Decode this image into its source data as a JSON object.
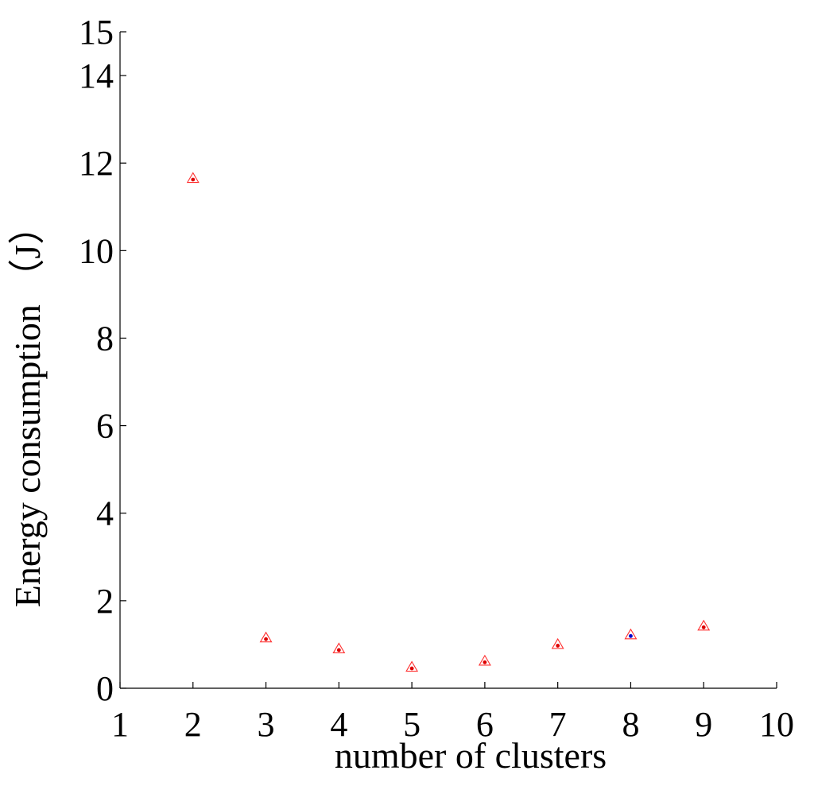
{
  "chart_data": {
    "type": "scatter",
    "xlabel": "number of clusters",
    "ylabel": "Energy consumption （J）",
    "xlim": [
      1,
      10
    ],
    "ylim": [
      0,
      15
    ],
    "xticks": [
      "1",
      "2",
      "3",
      "4",
      "5",
      "6",
      "7",
      "8",
      "9",
      "10"
    ],
    "yticks": [
      "0",
      "2",
      "4",
      "6",
      "8",
      "10",
      "12",
      "14",
      "15"
    ],
    "grid": false,
    "series": [
      {
        "marker": "triangle",
        "color": "#ff3030",
        "x": [
          2,
          3,
          4,
          5,
          6,
          7,
          8,
          9
        ],
        "y": [
          11.65,
          1.15,
          0.9,
          0.48,
          0.62,
          1.0,
          1.22,
          1.42
        ]
      },
      {
        "marker": "dot",
        "colors": [
          "#dd0000",
          "#dd0000",
          "#dd0000",
          "#dd0000",
          "#dd0000",
          "#dd0000",
          "#0000cc",
          "#dd0000"
        ],
        "x": [
          2,
          3,
          4,
          5,
          6,
          7,
          8,
          9
        ],
        "y": [
          11.65,
          1.15,
          0.9,
          0.48,
          0.62,
          1.0,
          1.22,
          1.42
        ]
      }
    ]
  }
}
